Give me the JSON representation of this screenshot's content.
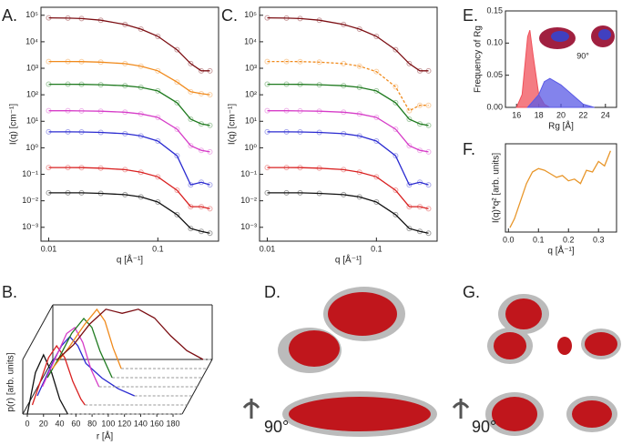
{
  "chart_data": [
    {
      "type": "line",
      "panel": "A.",
      "xscale": "log",
      "yscale": "log",
      "markers": true,
      "xlim": [
        0.0085,
        0.36
      ],
      "ylim": [
        0.0003,
        200000
      ],
      "xticks": [
        0.01,
        0.1
      ],
      "yticks": [
        {
          "value": 0.001,
          "label": "10⁻³"
        },
        {
          "value": 0.01,
          "label": "10⁻²"
        },
        {
          "value": 0.1,
          "label": "10⁻¹"
        },
        {
          "value": 1,
          "label": "10⁰"
        },
        {
          "value": 10,
          "label": "10¹"
        },
        {
          "value": 100,
          "label": "10²"
        },
        {
          "value": 1000,
          "label": "10³"
        },
        {
          "value": 10000,
          "label": "10⁴"
        },
        {
          "value": 100000,
          "label": "10⁵"
        }
      ],
      "xlabel": "q [Å⁻¹]",
      "ylabel": "I(q) [cm⁻¹]",
      "x": [
        0.01,
        0.015,
        0.02,
        0.03,
        0.05,
        0.07,
        0.1,
        0.15,
        0.2,
        0.25,
        0.3
      ],
      "series": [
        {
          "color": "#7b0d12",
          "values": [
            80000,
            78000,
            75000,
            65000,
            45000,
            30000,
            16000,
            5000,
            1500,
            800,
            800
          ]
        },
        {
          "color": "#f08a1c",
          "values": [
            1800,
            1800,
            1780,
            1700,
            1500,
            1200,
            800,
            300,
            130,
            110,
            100
          ]
        },
        {
          "color": "#1f7a1f",
          "values": [
            250,
            250,
            248,
            240,
            220,
            190,
            140,
            50,
            12,
            8,
            7
          ]
        },
        {
          "color": "#d63cc8",
          "values": [
            25,
            25,
            24.5,
            24,
            22,
            19,
            14,
            5,
            1.2,
            0.8,
            0.7
          ]
        },
        {
          "color": "#2a2ad0",
          "values": [
            4,
            4,
            3.95,
            3.8,
            3.4,
            2.8,
            1.8,
            0.5,
            0.04,
            0.05,
            0.04
          ]
        },
        {
          "color": "#d92020",
          "values": [
            0.18,
            0.18,
            0.178,
            0.17,
            0.15,
            0.12,
            0.08,
            0.025,
            0.006,
            0.006,
            0.005
          ]
        },
        {
          "color": "#111111",
          "values": [
            0.02,
            0.02,
            0.02,
            0.019,
            0.017,
            0.014,
            0.009,
            0.003,
            0.0009,
            0.0007,
            0.0006
          ]
        }
      ]
    },
    {
      "type": "line",
      "panel": "C.",
      "xscale": "log",
      "yscale": "log",
      "markers": true,
      "xlim": [
        0.0085,
        0.36
      ],
      "ylim": [
        0.0003,
        200000
      ],
      "xticks": [
        0.01,
        0.1
      ],
      "yticks": [
        {
          "value": 0.001,
          "label": "10⁻³"
        },
        {
          "value": 0.01,
          "label": "10⁻²"
        },
        {
          "value": 0.1,
          "label": "10⁻¹"
        },
        {
          "value": 1,
          "label": "10⁰"
        },
        {
          "value": 10,
          "label": "10¹"
        },
        {
          "value": 100,
          "label": "10²"
        },
        {
          "value": 1000,
          "label": "10³"
        },
        {
          "value": 10000,
          "label": "10⁴"
        },
        {
          "value": 100000,
          "label": "10⁵"
        }
      ],
      "xlabel": "q [Å⁻¹]",
      "ylabel": "I(q) [cm⁻¹]",
      "x": [
        0.01,
        0.015,
        0.02,
        0.03,
        0.05,
        0.07,
        0.1,
        0.15,
        0.2,
        0.25,
        0.3
      ],
      "series": [
        {
          "color": "#7b0d12",
          "values": [
            80000,
            78000,
            75000,
            65000,
            45000,
            30000,
            16000,
            5000,
            1500,
            800,
            800
          ]
        },
        {
          "color": "#f08a1c",
          "dashed": true,
          "values": [
            1800,
            1800,
            1780,
            1700,
            1500,
            1200,
            750,
            200,
            25,
            40,
            40
          ]
        },
        {
          "color": "#1f7a1f",
          "values": [
            250,
            250,
            248,
            240,
            220,
            190,
            140,
            50,
            12,
            8,
            7
          ]
        },
        {
          "color": "#d63cc8",
          "values": [
            25,
            25,
            24.5,
            24,
            22,
            19,
            14,
            5,
            1.2,
            0.8,
            0.7
          ]
        },
        {
          "color": "#2a2ad0",
          "values": [
            4,
            4,
            3.95,
            3.8,
            3.4,
            2.8,
            1.8,
            0.5,
            0.04,
            0.05,
            0.04
          ]
        },
        {
          "color": "#d92020",
          "values": [
            0.18,
            0.18,
            0.178,
            0.17,
            0.15,
            0.12,
            0.08,
            0.025,
            0.006,
            0.006,
            0.005
          ]
        },
        {
          "color": "#111111",
          "values": [
            0.02,
            0.02,
            0.02,
            0.019,
            0.017,
            0.014,
            0.009,
            0.003,
            0.0009,
            0.0007,
            0.0006
          ]
        }
      ]
    },
    {
      "type": "area",
      "panel": "E.",
      "inset_label": "90°",
      "xlim": [
        15,
        25
      ],
      "ylim": [
        0,
        0.15
      ],
      "xticks": [
        16,
        18,
        20,
        22,
        24
      ],
      "yticks": [
        {
          "value": 0,
          "label": "0.00"
        },
        0.05,
        {
          "value": 0.1,
          "label": "0.10"
        },
        0.15
      ],
      "xlabel": "Rg [Å]",
      "ylabel": "Frequency of Rg",
      "series": [
        {
          "color": "#f0505a",
          "x": [
            16,
            16.5,
            17,
            17.2,
            17.5,
            18,
            18.5,
            19
          ],
          "values": [
            0,
            0.02,
            0.11,
            0.12,
            0.08,
            0.02,
            0.005,
            0
          ]
        },
        {
          "color": "#5a5ae6",
          "x": [
            17,
            18,
            18.5,
            19,
            20,
            21,
            22,
            23
          ],
          "values": [
            0,
            0.02,
            0.04,
            0.045,
            0.035,
            0.02,
            0.005,
            0
          ]
        }
      ]
    },
    {
      "type": "line",
      "panel": "F.",
      "xlim": [
        -0.01,
        0.36
      ],
      "ylim": [
        0,
        1
      ],
      "xticks": [
        {
          "value": 0,
          "label": "0.0"
        },
        0.1,
        0.2,
        0.3
      ],
      "xlabel": "q [Å⁻¹]",
      "ylabel": "I(q)*q² [arb. units]",
      "series": [
        {
          "color": "#e8962a",
          "x": [
            0.005,
            0.02,
            0.04,
            0.06,
            0.08,
            0.1,
            0.12,
            0.14,
            0.16,
            0.18,
            0.2,
            0.22,
            0.24,
            0.26,
            0.28,
            0.3,
            0.32,
            0.34
          ],
          "values": [
            0.05,
            0.15,
            0.35,
            0.55,
            0.68,
            0.72,
            0.7,
            0.66,
            0.62,
            0.64,
            0.58,
            0.6,
            0.55,
            0.7,
            0.68,
            0.8,
            0.75,
            0.92
          ]
        }
      ]
    },
    {
      "type": "waterfall",
      "panel": "B.",
      "xlim": [
        0,
        180
      ],
      "ylim": [
        0,
        1
      ],
      "xticks": [
        0,
        20,
        40,
        60,
        80,
        100,
        120,
        140,
        160,
        180
      ],
      "xlabel": "r [Å]",
      "ylabel": "p(r) [arb. units]",
      "series": [
        {
          "color": "#111111",
          "x": [
            0,
            10,
            20,
            30,
            40,
            50
          ],
          "values": [
            0,
            0.7,
            1.0,
            0.7,
            0.25,
            0
          ]
        },
        {
          "color": "#d92020",
          "x": [
            0,
            10,
            20,
            30,
            40,
            50,
            60,
            65
          ],
          "values": [
            0,
            0.4,
            0.8,
            1.0,
            0.8,
            0.4,
            0.1,
            0
          ]
        },
        {
          "color": "#2a2ad0",
          "x": [
            0,
            10,
            20,
            30,
            40,
            50,
            60,
            80,
            100,
            120
          ],
          "values": [
            0,
            0.3,
            0.6,
            0.85,
            1.0,
            0.85,
            0.55,
            0.3,
            0.12,
            0
          ]
        },
        {
          "color": "#d63cc8",
          "x": [
            0,
            15,
            30,
            40,
            50,
            60,
            70
          ],
          "values": [
            0,
            0.45,
            0.9,
            1.0,
            0.75,
            0.3,
            0
          ]
        },
        {
          "color": "#1f7a1f",
          "x": [
            0,
            15,
            30,
            45,
            55,
            65,
            80
          ],
          "values": [
            0,
            0.35,
            0.75,
            1.0,
            0.85,
            0.45,
            0
          ]
        },
        {
          "color": "#f08a1c",
          "x": [
            0,
            20,
            40,
            55,
            65,
            75,
            85
          ],
          "values": [
            0,
            0.35,
            0.75,
            1.0,
            0.8,
            0.35,
            0
          ]
        },
        {
          "color": "#7b0d12",
          "x": [
            0,
            20,
            40,
            60,
            80,
            100,
            120,
            140,
            160,
            180
          ],
          "values": [
            0,
            0.25,
            0.6,
            0.85,
            0.78,
            0.85,
            0.7,
            0.4,
            0.15,
            0
          ]
        }
      ]
    }
  ],
  "images": [
    {
      "panel": "D.",
      "rotation_label": "90°"
    },
    {
      "panel": "G.",
      "rotation_label": "90°"
    }
  ]
}
